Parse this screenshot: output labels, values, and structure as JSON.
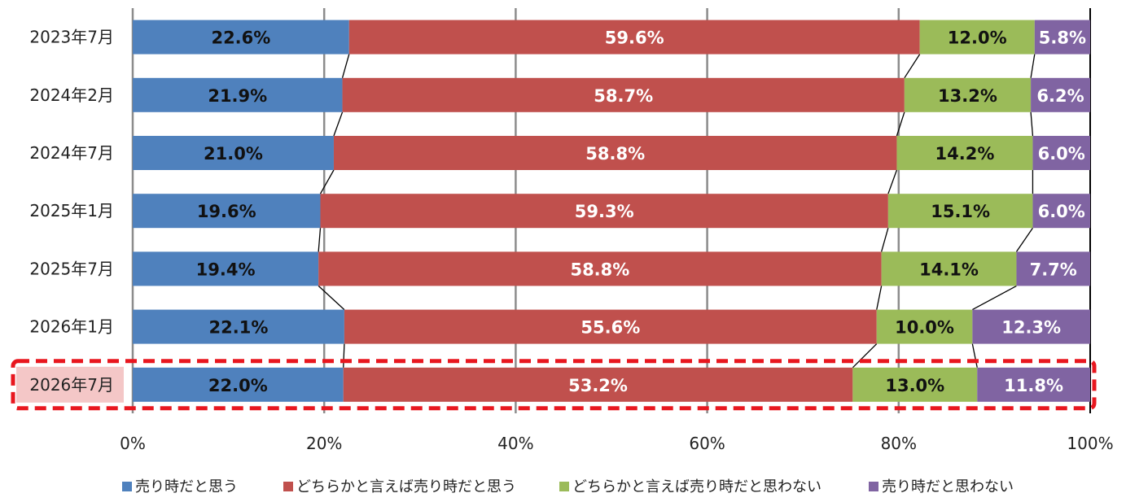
{
  "chart_data": {
    "type": "bar",
    "orientation": "horizontal",
    "stacked": "percent",
    "categories": [
      "2023年7月",
      "2024年2月",
      "2024年7月",
      "2025年1月",
      "2025年7月",
      "2026年1月",
      "2026年7月"
    ],
    "series": [
      {
        "name": "売り時だと思う",
        "color": "#4F81BD",
        "label_color": "#111111",
        "values": [
          22.6,
          21.9,
          21.0,
          19.6,
          19.4,
          22.1,
          22.0
        ],
        "labels": [
          "22.6%",
          "21.9%",
          "21.0%",
          "19.6%",
          "19.4%",
          "22.1%",
          "22.0%"
        ]
      },
      {
        "name": "どちらかと言えば売り時だと思う",
        "color": "#C0504D",
        "label_color": "#ffffff",
        "values": [
          59.6,
          58.7,
          58.8,
          59.3,
          58.8,
          55.6,
          53.2
        ],
        "labels": [
          "59.6%",
          "58.7%",
          "58.8%",
          "59.3%",
          "58.8%",
          "55.6%",
          "53.2%"
        ]
      },
      {
        "name": "どちらかと言えば売り時だと思わない",
        "color": "#9BBB59",
        "label_color": "#111111",
        "values": [
          12.0,
          13.2,
          14.2,
          15.1,
          14.1,
          10.0,
          13.0
        ],
        "labels": [
          "12.0%",
          "13.2%",
          "14.2%",
          "15.1%",
          "14.1%",
          "10.0%",
          "13.0%"
        ]
      },
      {
        "name": "売り時だと思わない",
        "color": "#8064A2",
        "label_color": "#ffffff",
        "values": [
          5.8,
          6.2,
          6.0,
          6.0,
          7.7,
          12.3,
          11.8
        ],
        "labels": [
          "5.8%",
          "6.2%",
          "6.0%",
          "6.0%",
          "7.7%",
          "12.3%",
          "11.8%"
        ]
      }
    ],
    "x_ticks": [
      "0%",
      "20%",
      "40%",
      "60%",
      "80%",
      "100%"
    ],
    "xlim": [
      0,
      100
    ],
    "grid": true,
    "series_lines": true,
    "legend": "bottom",
    "highlight_category": "2026年7月",
    "highlight_color": "#E8171F",
    "highlight_label_bg": "#F4C7C7"
  }
}
